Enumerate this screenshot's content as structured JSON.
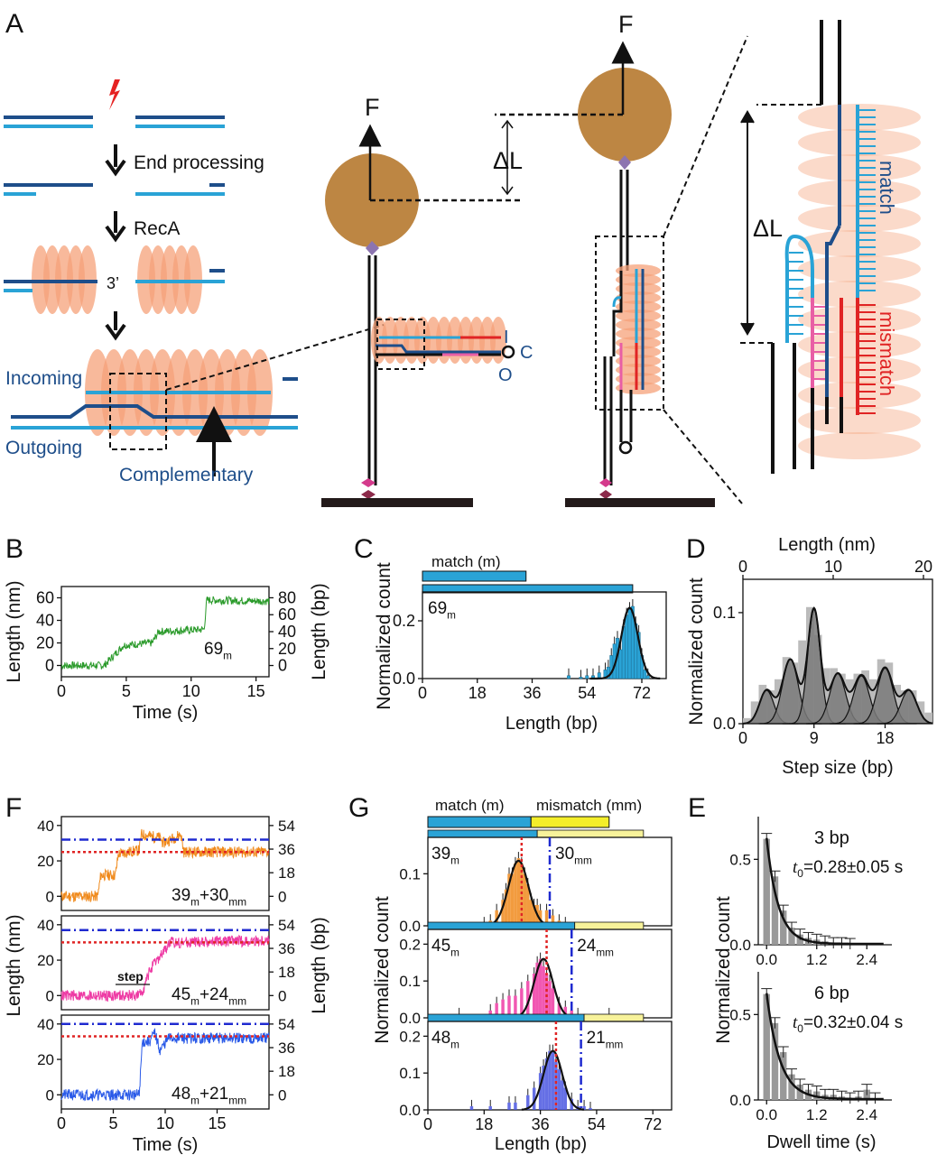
{
  "panels": {
    "A": {
      "letter": "A",
      "steps": [
        "End processing",
        "RecA"
      ],
      "three_prime": "3’",
      "strand_labels": {
        "incoming": "Incoming",
        "outgoing": "Outgoing",
        "complementary": "Complementary"
      },
      "force": "F",
      "delta_l": "ΔL",
      "ico": {
        "i": "I",
        "c": "C",
        "o": "O"
      },
      "zoom_labels": {
        "match": "match",
        "mismatch": "mismatch"
      }
    },
    "B": {
      "letter": "B"
    },
    "C": {
      "letter": "C",
      "bar_label": "match (m)"
    },
    "D": {
      "letter": "D"
    },
    "E": {
      "letter": "E"
    },
    "F": {
      "letter": "F"
    },
    "G": {
      "letter": "G",
      "bar_labels": {
        "match": "match (m)",
        "mismatch": "mismatch (mm)"
      }
    }
  },
  "chart_data": [
    {
      "id": "B",
      "type": "line",
      "xlabel": "Time (s)",
      "ylabel": "Length (nm)",
      "ylabel_right": "Length (bp)",
      "xlim": [
        0,
        16
      ],
      "ylim": [
        -10,
        70
      ],
      "xticks": [
        "0",
        "5",
        "10",
        "15"
      ],
      "yticks": [
        "0",
        "20",
        "40",
        "60"
      ],
      "yticks_right": [
        "0",
        "20",
        "40",
        "60",
        "80"
      ],
      "annotation": "69",
      "annotation_sub": "m",
      "color": "#2a9a2a",
      "levels": [
        [
          0,
          0
        ],
        [
          3.3,
          0
        ],
        [
          4.8,
          18
        ],
        [
          7.0,
          20
        ],
        [
          7.5,
          30
        ],
        [
          11.0,
          32
        ],
        [
          11.2,
          58
        ],
        [
          16,
          57
        ]
      ]
    },
    {
      "id": "C",
      "type": "bar",
      "xlabel": "Length (bp)",
      "ylabel": "Normalized count",
      "xlim": [
        0,
        80
      ],
      "ylim": [
        0,
        0.3
      ],
      "xticks": [
        "0",
        "18",
        "36",
        "54",
        "72"
      ],
      "yticks": [
        "0.0",
        "0.2"
      ],
      "annotation": "69",
      "annotation_sub": "m",
      "color": "#2aa3d6",
      "gauss": {
        "mu": 68,
        "sigma": 2.7,
        "amp": 0.245
      },
      "bars_x": [
        48,
        52,
        54,
        56,
        58,
        60,
        61,
        62,
        63,
        64,
        65,
        66,
        67,
        68,
        69,
        70,
        71,
        72,
        73,
        74
      ],
      "bars_y": [
        0.01,
        0.005,
        0.01,
        0.01,
        0.02,
        0.03,
        0.04,
        0.08,
        0.12,
        0.14,
        0.1,
        0.18,
        0.22,
        0.24,
        0.25,
        0.19,
        0.16,
        0.08,
        0.03,
        0.01
      ],
      "match_bar": [
        0,
        34
      ],
      "full_bar": [
        0,
        69
      ]
    },
    {
      "id": "D",
      "type": "bar",
      "xlabel": "Step size (bp)",
      "ylabel": "Normalized count",
      "x2label": "Length (nm)",
      "xlim": [
        0,
        24
      ],
      "ylim": [
        0,
        0.13
      ],
      "xticks": [
        "0",
        "9",
        "18"
      ],
      "x2ticks": [
        "0",
        "10",
        "20"
      ],
      "yticks": [
        "0.0",
        "0.1"
      ],
      "color": "#888888",
      "peaks": [
        [
          3,
          0.9,
          0.03
        ],
        [
          6,
          1.0,
          0.058
        ],
        [
          9,
          0.8,
          0.103
        ],
        [
          12,
          1.0,
          0.045
        ],
        [
          15,
          1.0,
          0.043
        ],
        [
          18,
          1.0,
          0.05
        ],
        [
          21,
          1.0,
          0.03
        ]
      ],
      "bars_x": [
        0.5,
        1.5,
        2.5,
        3.5,
        4.5,
        5.5,
        6.5,
        7.5,
        8.5,
        9.5,
        10.5,
        11.5,
        12.5,
        13.5,
        14.5,
        15.5,
        16.5,
        17.5,
        18.5,
        19.5,
        20.5,
        21.5,
        22.5,
        23.5
      ],
      "bars_y": [
        0.005,
        0.02,
        0.035,
        0.03,
        0.04,
        0.06,
        0.055,
        0.075,
        0.105,
        0.08,
        0.05,
        0.05,
        0.045,
        0.04,
        0.045,
        0.048,
        0.04,
        0.058,
        0.055,
        0.035,
        0.03,
        0.03,
        0.02,
        0.01
      ]
    },
    {
      "id": "E",
      "type": "bar",
      "xlabel": "Dwell time (s)",
      "ylabel": "Normalized count",
      "xlim": [
        -0.2,
        3.0
      ],
      "ylim": [
        0,
        0.75
      ],
      "xticks": [
        "0.0",
        "1.2",
        "2.4"
      ],
      "yticks": [
        "0.0",
        "0.5"
      ],
      "color": "#999999",
      "subplots": [
        {
          "title": "3 bp",
          "t0": "t",
          "t0_sub": "0",
          "t0_val": "=0.28±0.05 s",
          "tau": 0.28,
          "amp": 0.62,
          "bars_x": [
            0,
            0.2,
            0.4,
            0.6,
            0.8,
            1.0,
            1.2,
            1.4,
            1.6,
            1.8,
            2.0
          ],
          "bars_y": [
            0.62,
            0.4,
            0.2,
            0.1,
            0.06,
            0.04,
            0.03,
            0.02,
            0.01,
            0.01,
            0.005
          ]
        },
        {
          "title": "6 bp",
          "t0": "t",
          "t0_sub": "0",
          "t0_val": "=0.32±0.04 s",
          "tau": 0.32,
          "amp": 0.62,
          "bars_x": [
            0,
            0.2,
            0.4,
            0.6,
            0.8,
            1.0,
            1.2,
            1.4,
            1.6,
            1.8,
            2.0,
            2.2,
            2.4,
            2.6
          ],
          "bars_y": [
            0.62,
            0.45,
            0.28,
            0.15,
            0.09,
            0.06,
            0.05,
            0.03,
            0.03,
            0.02,
            0.01,
            0.02,
            0.06,
            0.01
          ]
        }
      ]
    },
    {
      "id": "F",
      "type": "line",
      "xlabel": "Time (s)",
      "ylabel": "Length (nm)",
      "ylabel_right": "Length (bp)",
      "xlim": [
        0,
        20
      ],
      "ylim": [
        -8,
        45
      ],
      "xticks": [
        "0",
        "5",
        "10",
        "15"
      ],
      "yticks": [
        "0",
        "20",
        "40"
      ],
      "yticks_right": [
        "0",
        "18",
        "36",
        "54"
      ],
      "traces": [
        {
          "label": "39",
          "label_sub": "m",
          "label2": "+30",
          "label2_sub": "mm",
          "color": "#f08a1c",
          "blue": 32,
          "red": 25,
          "levels": [
            [
              0,
              0
            ],
            [
              3.5,
              0
            ],
            [
              3.8,
              12
            ],
            [
              5.2,
              12
            ],
            [
              5.5,
              24
            ],
            [
              7.5,
              26
            ],
            [
              7.7,
              35
            ],
            [
              9.5,
              33
            ],
            [
              9.8,
              30
            ],
            [
              11.5,
              35
            ],
            [
              11.8,
              25
            ],
            [
              20,
              25
            ]
          ]
        },
        {
          "label": "45",
          "label_sub": "m",
          "label2": "+24",
          "label2_sub": "mm",
          "color": "#ee3aa4",
          "blue": 37,
          "red": 30,
          "levels": [
            [
              0,
              0
            ],
            [
              7.5,
              0
            ],
            [
              8.0,
              5
            ],
            [
              8.5,
              14
            ],
            [
              9.5,
              22
            ],
            [
              10.5,
              30
            ],
            [
              20,
              31
            ]
          ],
          "step_label": "step"
        },
        {
          "label": "48",
          "label_sub": "m",
          "label2": "+21",
          "label2_sub": "mm",
          "color": "#2a5ae8",
          "blue": 40,
          "red": 33,
          "levels": [
            [
              0,
              0
            ],
            [
              7.5,
              0
            ],
            [
              7.8,
              30
            ],
            [
              8.5,
              30
            ],
            [
              9.0,
              35
            ],
            [
              9.5,
              25
            ],
            [
              10.3,
              32
            ],
            [
              20,
              32
            ]
          ]
        }
      ]
    },
    {
      "id": "G",
      "type": "bar",
      "xlabel": "Length (bp)",
      "ylabel": "Normalized count",
      "xlim": [
        0,
        78
      ],
      "ylim": [
        0,
        0.2
      ],
      "xticks": [
        "0",
        "18",
        "36",
        "54",
        "72"
      ],
      "yticks_top": [
        "0.0",
        "0.1"
      ],
      "yticks": [
        "0.0",
        "0.1",
        "0.2"
      ],
      "subplots": [
        {
          "m": "39",
          "m_sub": "m",
          "mm": "30",
          "mm_sub": "mm",
          "color": "#f08a1c",
          "mu": 29,
          "sigma": 3.2,
          "amp": 0.125,
          "red_x": 30,
          "blue_x": 39,
          "match_end": 35,
          "total_end": 69,
          "bars_x": [
            18,
            20,
            22,
            24,
            25,
            26,
            27,
            28,
            29,
            30,
            31,
            32,
            33,
            34,
            35,
            36,
            38,
            40,
            42,
            44
          ],
          "bars_y": [
            0.005,
            0.01,
            0.03,
            0.05,
            0.07,
            0.1,
            0.1,
            0.12,
            0.13,
            0.12,
            0.1,
            0.08,
            0.05,
            0.04,
            0.04,
            0.03,
            0.03,
            0.02,
            0.01,
            0.005
          ]
        },
        {
          "m": "45",
          "m_sub": "m",
          "mm": "24",
          "mm_sub": "mm",
          "color": "#ee3aa4",
          "mu": 37,
          "sigma": 3.0,
          "amp": 0.16,
          "red_x": 38,
          "blue_x": 46,
          "match_end": 47,
          "total_end": 69,
          "bars_x": [
            10,
            20,
            22,
            24,
            26,
            28,
            30,
            32,
            34,
            35,
            36,
            37,
            38,
            39,
            40,
            42,
            44,
            46,
            48,
            58
          ],
          "bars_y": [
            0.01,
            0.02,
            0.04,
            0.05,
            0.06,
            0.06,
            0.08,
            0.1,
            0.12,
            0.15,
            0.16,
            0.14,
            0.12,
            0.1,
            0.08,
            0.04,
            0.03,
            0.02,
            0.01,
            0.01
          ]
        },
        {
          "m": "48",
          "m_sub": "m",
          "mm": "21",
          "mm_sub": "mm",
          "color": "#4a56e0",
          "mu": 40,
          "sigma": 3.0,
          "amp": 0.16,
          "red_x": 41,
          "blue_x": 49,
          "match_end": 50,
          "total_end": 69,
          "bars_x": [
            14,
            20,
            26,
            28,
            32,
            34,
            36,
            37,
            38,
            39,
            40,
            41,
            42,
            43,
            44,
            46,
            48,
            50,
            52
          ],
          "bars_y": [
            0.01,
            0.01,
            0.02,
            0.02,
            0.04,
            0.06,
            0.1,
            0.12,
            0.14,
            0.16,
            0.16,
            0.13,
            0.11,
            0.08,
            0.06,
            0.03,
            0.01,
            0.01,
            0.005
          ]
        }
      ]
    }
  ]
}
